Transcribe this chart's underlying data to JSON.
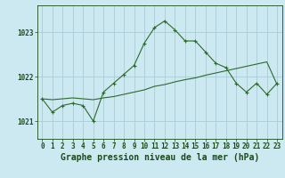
{
  "title": "Graphe pression niveau de la mer (hPa)",
  "x_values": [
    0,
    1,
    2,
    3,
    4,
    5,
    6,
    7,
    8,
    9,
    10,
    11,
    12,
    13,
    14,
    15,
    16,
    17,
    18,
    19,
    20,
    21,
    22,
    23
  ],
  "y_main": [
    1021.5,
    1021.2,
    1021.35,
    1021.4,
    1021.35,
    1021.0,
    1021.65,
    1021.85,
    1022.05,
    1022.25,
    1022.75,
    1023.1,
    1023.25,
    1023.05,
    1022.8,
    1022.8,
    1022.55,
    1022.3,
    1022.2,
    1021.85,
    1021.65,
    1021.85,
    1021.6,
    1021.85
  ],
  "y_trend": [
    1021.5,
    1021.48,
    1021.5,
    1021.52,
    1021.5,
    1021.48,
    1021.52,
    1021.55,
    1021.6,
    1021.65,
    1021.7,
    1021.78,
    1021.82,
    1021.88,
    1021.93,
    1021.97,
    1022.03,
    1022.08,
    1022.13,
    1022.18,
    1022.23,
    1022.28,
    1022.33,
    1021.82
  ],
  "line_color": "#2d6a2d",
  "bg_color": "#cce8f0",
  "grid_color": "#aaccd4",
  "label_color": "#1a4a1a",
  "ylim_min": 1020.6,
  "ylim_max": 1023.6,
  "yticks": [
    1021,
    1022,
    1023
  ],
  "xticks": [
    0,
    1,
    2,
    3,
    4,
    5,
    6,
    7,
    8,
    9,
    10,
    11,
    12,
    13,
    14,
    15,
    16,
    17,
    18,
    19,
    20,
    21,
    22,
    23
  ],
  "tick_fontsize": 5.5,
  "xlabel_fontsize": 7.0,
  "figw": 3.2,
  "figh": 2.0,
  "dpi": 100
}
